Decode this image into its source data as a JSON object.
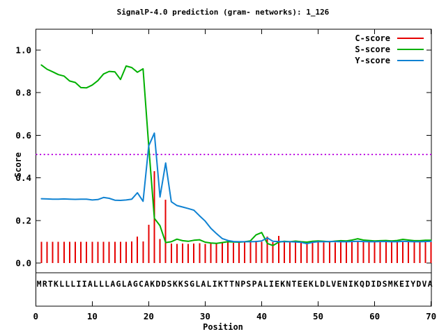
{
  "chart_data": {
    "type": "line",
    "title": "SignalP-4.0 prediction (gram- networks): 1_126",
    "xlabel": "Position",
    "ylabel": "Score",
    "xlim": [
      0,
      70
    ],
    "ylim": [
      0.0,
      1.0
    ],
    "grid": false,
    "xticks": [
      "0",
      "10",
      "20",
      "30",
      "40",
      "50",
      "60",
      "70"
    ],
    "xtick_values": [
      0,
      10,
      20,
      30,
      40,
      50,
      60,
      70
    ],
    "yticks": [
      "0.0",
      "0.2",
      "0.4",
      "0.6",
      "0.8",
      "1.0"
    ],
    "ytick_values": [
      0,
      0.2,
      0.4,
      0.6,
      0.8,
      1.0
    ],
    "threshold_line": {
      "value": 0.51,
      "color": "#bb00e0",
      "style": "dotted"
    },
    "sequence": "MRTKLLLIIALLLAGLAGCAKDDSKKSGLALIKTTNPSPALIEKNTEEKLDLVENIKQDIDSMKEIYDVA",
    "x_start": 1,
    "legend": {
      "position": "top-right",
      "entries": [
        "C-score",
        "S-score",
        "Y-score"
      ]
    },
    "series": [
      {
        "name": "C-score",
        "style": "impulses",
        "color": "#e60000",
        "values": [
          0.1,
          0.1,
          0.1,
          0.1,
          0.1,
          0.1,
          0.1,
          0.1,
          0.1,
          0.1,
          0.1,
          0.1,
          0.1,
          0.1,
          0.1,
          0.1,
          0.102,
          0.125,
          0.102,
          0.179,
          0.432,
          0.112,
          0.298,
          0.091,
          0.09,
          0.092,
          0.09,
          0.091,
          0.093,
          0.09,
          0.092,
          0.093,
          0.095,
          0.096,
          0.095,
          0.097,
          0.096,
          0.098,
          0.105,
          0.099,
          0.124,
          0.098,
          0.127,
          0.098,
          0.097,
          0.097,
          0.098,
          0.096,
          0.097,
          0.098,
          0.097,
          0.098,
          0.097,
          0.098,
          0.098,
          0.098,
          0.099,
          0.098,
          0.098,
          0.098,
          0.098,
          0.098,
          0.098,
          0.098,
          0.098,
          0.098,
          0.098,
          0.098,
          0.098,
          0.098
        ]
      },
      {
        "name": "S-score",
        "style": "lines",
        "color": "#00b000",
        "values": [
          0.93,
          0.91,
          0.898,
          0.885,
          0.878,
          0.855,
          0.848,
          0.824,
          0.823,
          0.836,
          0.857,
          0.888,
          0.9,
          0.898,
          0.862,
          0.925,
          0.918,
          0.896,
          0.912,
          0.55,
          0.21,
          0.175,
          0.096,
          0.1,
          0.112,
          0.105,
          0.102,
          0.107,
          0.109,
          0.098,
          0.094,
          0.092,
          0.096,
          0.1,
          0.099,
          0.098,
          0.1,
          0.104,
          0.132,
          0.143,
          0.092,
          0.082,
          0.098,
          0.102,
          0.1,
          0.103,
          0.1,
          0.098,
          0.102,
          0.104,
          0.102,
          0.1,
          0.103,
          0.105,
          0.104,
          0.108,
          0.114,
          0.108,
          0.106,
          0.104,
          0.105,
          0.106,
          0.104,
          0.106,
          0.111,
          0.108,
          0.105,
          0.105,
          0.107,
          0.107
        ]
      },
      {
        "name": "Y-score",
        "style": "lines",
        "color": "#0f82d2",
        "values": [
          0.302,
          0.301,
          0.3,
          0.3,
          0.301,
          0.3,
          0.299,
          0.3,
          0.3,
          0.296,
          0.298,
          0.308,
          0.304,
          0.295,
          0.294,
          0.296,
          0.3,
          0.33,
          0.29,
          0.55,
          0.61,
          0.31,
          0.47,
          0.288,
          0.27,
          0.263,
          0.256,
          0.248,
          0.222,
          0.197,
          0.163,
          0.138,
          0.115,
          0.106,
          0.101,
          0.1,
          0.1,
          0.1,
          0.101,
          0.104,
          0.118,
          0.102,
          0.101,
          0.1,
          0.1,
          0.099,
          0.097,
          0.091,
          0.097,
          0.1,
          0.1,
          0.101,
          0.101,
          0.1,
          0.1,
          0.101,
          0.102,
          0.101,
          0.1,
          0.1,
          0.101,
          0.101,
          0.1,
          0.1,
          0.102,
          0.101,
          0.1,
          0.1,
          0.101,
          0.102
        ]
      }
    ]
  }
}
